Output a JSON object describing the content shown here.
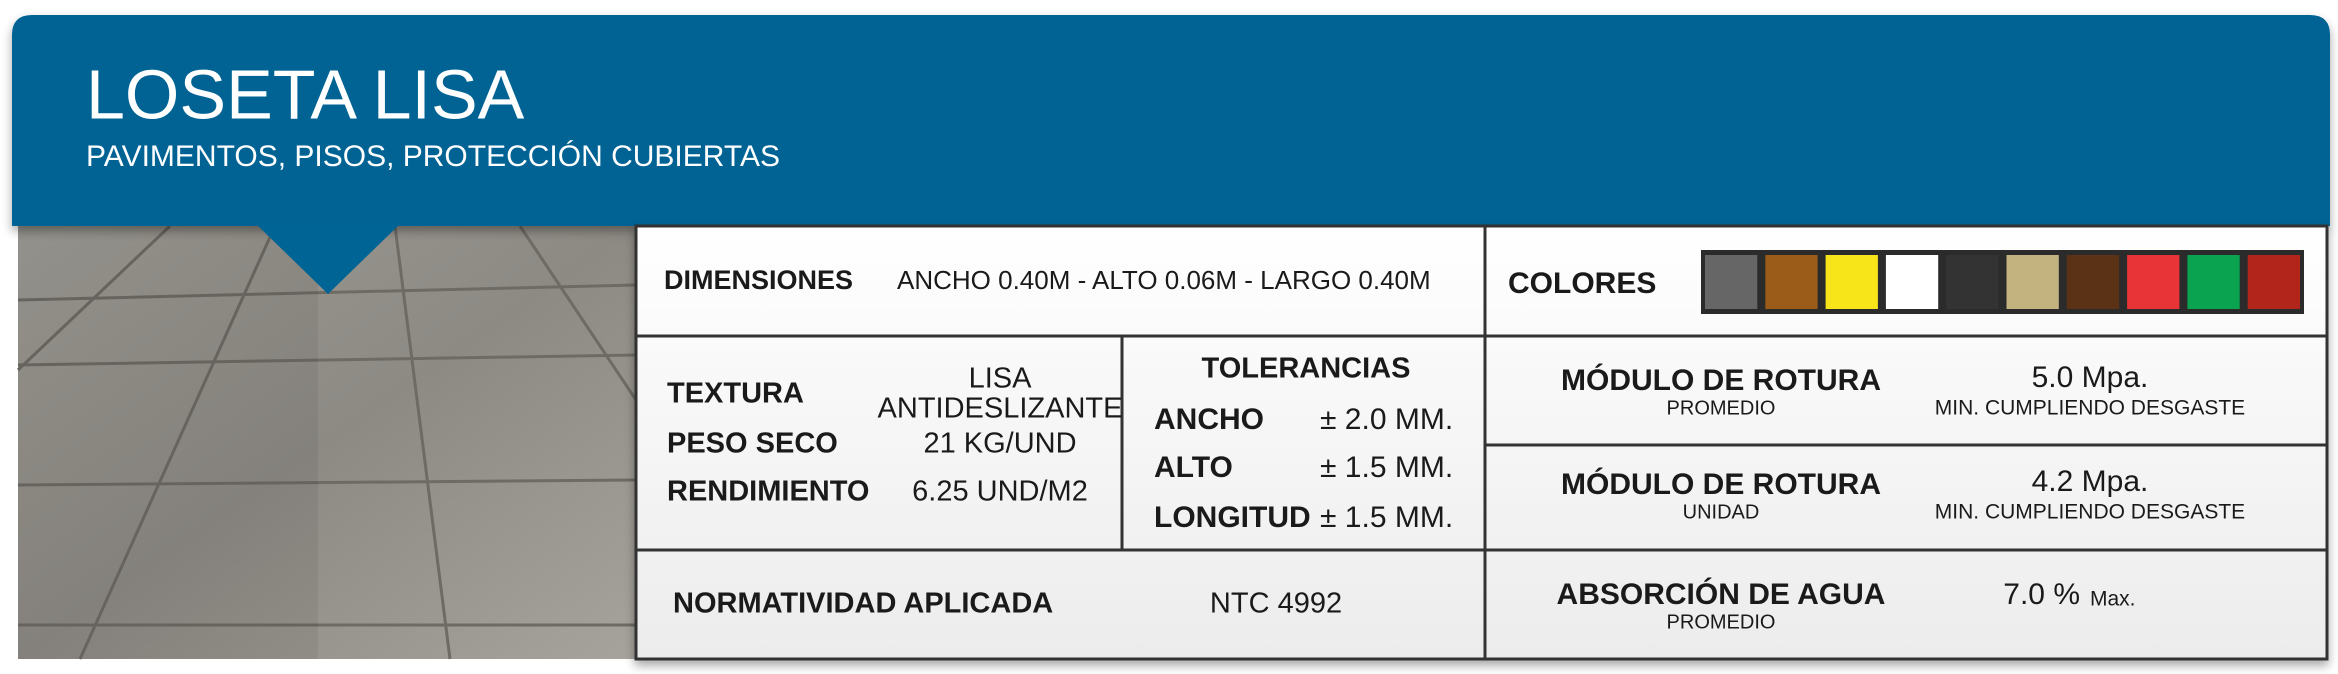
{
  "header": {
    "title": "LOSETA LISA",
    "subtitle": "PAVIMENTOS, PISOS, PROTECCIÓN CUBIERTAS"
  },
  "dimensiones": {
    "label": "DIMENSIONES",
    "value": "ANCHO 0.40M - ALTO 0.06M - LARGO 0.40M"
  },
  "colores": {
    "label": "COLORES",
    "swatches": [
      "#666667",
      "#9a5c18",
      "#f7e51a",
      "#ffffff",
      "#333333",
      "#c2b37f",
      "#5c3216",
      "#e83436",
      "#0aa350",
      "#b2251b"
    ]
  },
  "propiedades": [
    {
      "label": "TEXTURA",
      "value": [
        "LISA",
        "ANTIDESLIZANTE"
      ]
    },
    {
      "label": "PESO SECO",
      "value": [
        "21 KG/UND"
      ]
    },
    {
      "label": "RENDIMIENTO",
      "value": [
        "6.25 UND/M2"
      ]
    }
  ],
  "tolerancias": {
    "title": "TOLERANCIAS",
    "rows": [
      {
        "label": "ANCHO",
        "value": "± 2.0 MM."
      },
      {
        "label": "ALTO",
        "value": "± 1.5 MM."
      },
      {
        "label": "LONGITUD",
        "value": "± 1.5 MM."
      }
    ]
  },
  "normatividad": {
    "label": "NORMATIVIDAD APLICADA",
    "value": "NTC 4992"
  },
  "ensayos": [
    {
      "label": "MÓDULO DE ROTURA",
      "sublabel": "PROMEDIO",
      "value": "5.0 Mpa.",
      "note": "MIN. CUMPLIENDO DESGASTE"
    },
    {
      "label": "MÓDULO DE ROTURA",
      "sublabel": "UNIDAD",
      "value": "4.2 Mpa.",
      "note": "MIN. CUMPLIENDO DESGASTE"
    },
    {
      "label": "ABSORCIÓN DE AGUA",
      "sublabel": "PROMEDIO",
      "value": "7.0 %",
      "note": "Max."
    }
  ]
}
